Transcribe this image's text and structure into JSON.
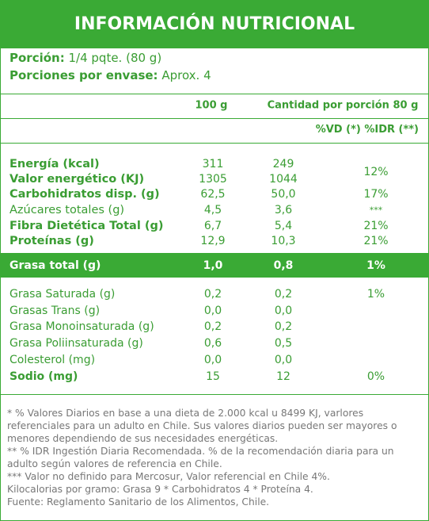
{
  "header": {
    "title": "INFORMACIÓN NUTRICIONAL"
  },
  "serving": [
    {
      "label": "Porción:",
      "value": "1/4 pqte. (80 g)"
    },
    {
      "label": "Porciones por envase:",
      "value": "Aprox. 4"
    }
  ],
  "columns": {
    "per_100g": "100 g",
    "per_serving": "Cantidad por porción 80 g",
    "pct": "%VD (*) %IDR (**)"
  },
  "rows": [
    {
      "label": "Energía (kcal)",
      "per_100g": "311",
      "per_serving": "249",
      "pct": "12%"
    },
    {
      "label": "Valor energético (KJ)",
      "per_100g": "1305",
      "per_serving": "1044"
    },
    {
      "label": "Carbohidratos disp. (g)",
      "per_100g": "62,5",
      "per_serving": "50,0",
      "pct": "17%"
    },
    {
      "label": "Azúcares totales (g)",
      "per_100g": "4,5",
      "per_serving": "3,6",
      "pct": "***"
    },
    {
      "label": "Fibra Dietética Total (g)",
      "per_100g": "6,7",
      "per_serving": "5,4",
      "pct": "21%"
    },
    {
      "label": "Proteínas (g)",
      "per_100g": "12,9",
      "per_serving": "10,3",
      "pct": "21%"
    }
  ],
  "fat_total": {
    "label": "Grasa total (g)",
    "per_100g": "1,0",
    "per_serving": "0,8",
    "pct": "1%"
  },
  "fat_rows": [
    {
      "label": "Grasa Saturada (g)",
      "per_100g": "0,2",
      "per_serving": "0,2",
      "pct": "1%"
    },
    {
      "label": "Grasas Trans (g)",
      "per_100g": "0,0",
      "per_serving": "0,0"
    },
    {
      "label": "Grasa Monoinsaturada (g)",
      "per_100g": "0,2",
      "per_serving": "0,2"
    },
    {
      "label": "Grasa Poliinsaturada (g)",
      "per_100g": "0,6",
      "per_serving": "0,5"
    },
    {
      "label": "Colesterol (mg)",
      "per_100g": "0,0",
      "per_serving": "0,0"
    },
    {
      "label": "Sodio (mg)",
      "per_100g": "15",
      "per_serving": "12",
      "pct": "0%"
    }
  ],
  "footnotes": [
    "* % Valores Diarios en base a una dieta de 2.000 kcal u 8499 KJ, varlores referenciales para un adulto en Chile. Sus valores diarios pueden ser mayores o menores dependiendo de sus necesidades energéticas.",
    "** % IDR Ingestión Diaria Recomendada. % de la recomendación diaria para un adulto según valores de referencia en Chile.",
    "*** Valor no definido para Mercosur, Valor referencial en Chile 4%.",
    "Kilocalorias por gramo: Grasa 9 * Carbohidratos 4 * Proteína 4.",
    "Fuente: Reglamento Sanitario de los Alimentos, Chile."
  ]
}
